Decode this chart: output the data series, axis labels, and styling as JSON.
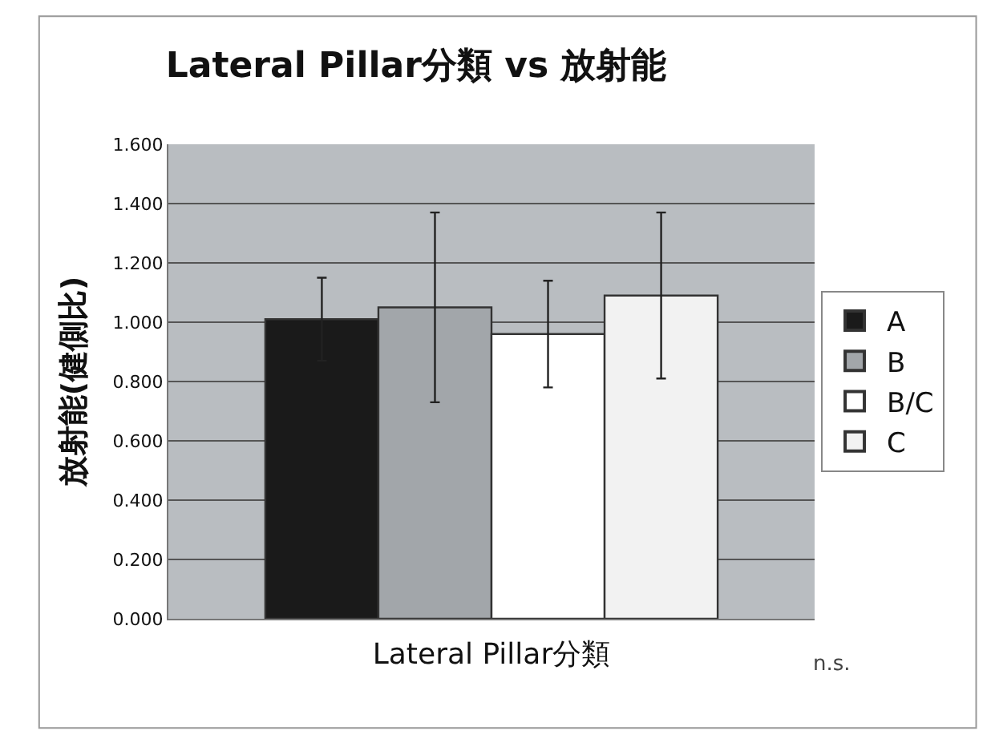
{
  "chart_data": {
    "type": "bar",
    "title": "Lateral Pillar分類 vs 放射能",
    "xlabel": "Lateral Pillar分類",
    "ylabel": "放射能(健側比)",
    "categories": [
      null
    ],
    "series": [
      {
        "name": "A",
        "color": "#1a1a1a",
        "values": [
          1.01
        ],
        "errors": [
          0.14
        ]
      },
      {
        "name": "B",
        "color": "#a2a6aa",
        "values": [
          1.05
        ],
        "errors": [
          0.32
        ]
      },
      {
        "name": "B/C",
        "color": "#ffffff",
        "values": [
          0.96
        ],
        "errors": [
          0.18
        ]
      },
      {
        "name": "C",
        "color": "#f2f2f2",
        "values": [
          1.09
        ],
        "errors": [
          0.28
        ]
      }
    ],
    "ylim": [
      0,
      1.6
    ],
    "yticks": [
      {
        "value": 0,
        "label": "0.000"
      },
      {
        "value": 0.2,
        "label": "0.200"
      },
      {
        "value": 0.4,
        "label": "0.400"
      },
      {
        "value": 0.6,
        "label": "0.600"
      },
      {
        "value": 0.8,
        "label": "0.800"
      },
      {
        "value": 1.0,
        "label": "1.000"
      },
      {
        "value": 1.2,
        "label": "1.200"
      },
      {
        "value": 1.4,
        "label": "1.400"
      },
      {
        "value": 1.6,
        "label": "1.600"
      }
    ],
    "grid": "y",
    "legend": "right",
    "tick_labels": "y",
    "annotations": [
      "n.s."
    ]
  }
}
